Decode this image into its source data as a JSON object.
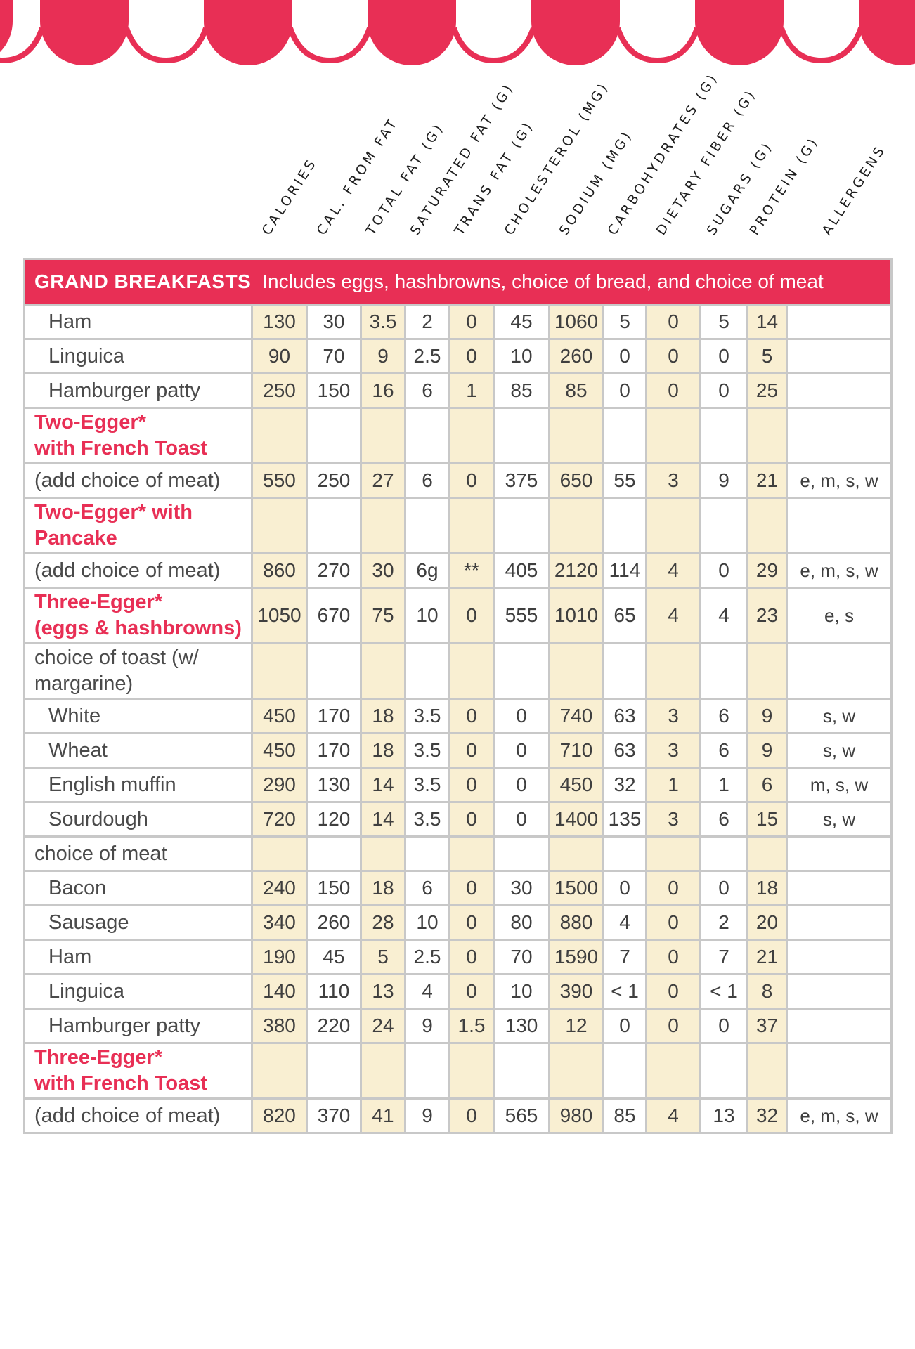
{
  "colors": {
    "red": "#E82F55",
    "cream": "#F9EFD2",
    "grid": "#C8C8C8",
    "text": "#3F3F3F",
    "label": "#4A4A4A",
    "header_text": "#1E1E1E"
  },
  "columns": [
    "CALORIES",
    "CAL. FROM FAT",
    "TOTAL FAT (G)",
    "SATURATED FAT (G)",
    "TRANS FAT (G)",
    "CHOLESTEROL (MG)",
    "SODIUM (MG)",
    "CARBOHYDRATES (G)",
    "DIETARY FIBER (G)",
    "SUGARS (G)",
    "PROTEIN (G)",
    "ALLERGENS"
  ],
  "section_header": {
    "title": "GRAND BREAKFASTS",
    "subtitle": "Includes eggs, hashbrowns, choice of bread, and choice of meat"
  },
  "table": {
    "rows": [
      {
        "label_lines": [
          "Ham"
        ],
        "style": "item",
        "tall": false,
        "values": [
          "130",
          "30",
          "3.5",
          "2",
          "0",
          "45",
          "1060",
          "5",
          "0",
          "5",
          "14",
          ""
        ]
      },
      {
        "label_lines": [
          "Linguica"
        ],
        "style": "item",
        "tall": false,
        "values": [
          "90",
          "70",
          "9",
          "2.5",
          "0",
          "10",
          "260",
          "0",
          "0",
          "0",
          "5",
          ""
        ]
      },
      {
        "label_lines": [
          "Hamburger patty"
        ],
        "style": "item",
        "tall": false,
        "values": [
          "250",
          "150",
          "16",
          "6",
          "1",
          "85",
          "85",
          "0",
          "0",
          "0",
          "25",
          ""
        ]
      },
      {
        "label_lines": [
          "Two-Egger*",
          "with French Toast"
        ],
        "style": "red",
        "tall": true,
        "values": []
      },
      {
        "label_lines": [
          "(add choice of meat)"
        ],
        "style": "flush",
        "tall": false,
        "values": [
          "550",
          "250",
          "27",
          "6",
          "0",
          "375",
          "650",
          "55",
          "3",
          "9",
          "21",
          "e, m, s, w"
        ]
      },
      {
        "label_lines": [
          "Two-Egger* with Pancake"
        ],
        "style": "red",
        "tall": false,
        "values": []
      },
      {
        "label_lines": [
          "(add choice of meat)"
        ],
        "style": "flush",
        "tall": false,
        "values": [
          "860",
          "270",
          "30",
          "6g",
          "**",
          "405",
          "2120",
          "114",
          "4",
          "0",
          "29",
          "e, m, s, w"
        ]
      },
      {
        "label_lines": [
          "Three-Egger*",
          "(eggs & hashbrowns)"
        ],
        "style": "red",
        "tall": true,
        "values": [
          "1050",
          "670",
          "75",
          "10",
          "0",
          "555",
          "1010",
          "65",
          "4",
          "4",
          "23",
          "e, s"
        ]
      },
      {
        "label_lines": [
          "choice of toast (w/",
          "margarine)"
        ],
        "style": "flush",
        "tall": true,
        "values": []
      },
      {
        "label_lines": [
          "White"
        ],
        "style": "item",
        "tall": false,
        "values": [
          "450",
          "170",
          "18",
          "3.5",
          "0",
          "0",
          "740",
          "63",
          "3",
          "6",
          "9",
          "s, w"
        ]
      },
      {
        "label_lines": [
          "Wheat"
        ],
        "style": "item",
        "tall": false,
        "values": [
          "450",
          "170",
          "18",
          "3.5",
          "0",
          "0",
          "710",
          "63",
          "3",
          "6",
          "9",
          "s, w"
        ]
      },
      {
        "label_lines": [
          "English muffin"
        ],
        "style": "item",
        "tall": false,
        "values": [
          "290",
          "130",
          "14",
          "3.5",
          "0",
          "0",
          "450",
          "32",
          "1",
          "1",
          "6",
          "m, s, w"
        ]
      },
      {
        "label_lines": [
          "Sourdough"
        ],
        "style": "item",
        "tall": false,
        "values": [
          "720",
          "120",
          "14",
          "3.5",
          "0",
          "0",
          "1400",
          "135",
          "3",
          "6",
          "15",
          "s, w"
        ]
      },
      {
        "label_lines": [
          "choice of meat"
        ],
        "style": "flush",
        "tall": false,
        "values": []
      },
      {
        "label_lines": [
          "Bacon"
        ],
        "style": "item",
        "tall": false,
        "values": [
          "240",
          "150",
          "18",
          "6",
          "0",
          "30",
          "1500",
          "0",
          "0",
          "0",
          "18",
          ""
        ]
      },
      {
        "label_lines": [
          "Sausage"
        ],
        "style": "item",
        "tall": false,
        "values": [
          "340",
          "260",
          "28",
          "10",
          "0",
          "80",
          "880",
          "4",
          "0",
          "2",
          "20",
          ""
        ]
      },
      {
        "label_lines": [
          "Ham"
        ],
        "style": "item",
        "tall": false,
        "values": [
          "190",
          "45",
          "5",
          "2.5",
          "0",
          "70",
          "1590",
          "7",
          "0",
          "7",
          "21",
          ""
        ]
      },
      {
        "label_lines": [
          "Linguica"
        ],
        "style": "item",
        "tall": false,
        "values": [
          "140",
          "110",
          "13",
          "4",
          "0",
          "10",
          "390",
          "< 1",
          "0",
          "< 1",
          "8",
          ""
        ]
      },
      {
        "label_lines": [
          "Hamburger patty"
        ],
        "style": "item",
        "tall": false,
        "values": [
          "380",
          "220",
          "24",
          "9",
          "1.5",
          "130",
          "12",
          "0",
          "0",
          "0",
          "37",
          ""
        ]
      },
      {
        "label_lines": [
          "Three-Egger*",
          "with French Toast"
        ],
        "style": "red",
        "tall": true,
        "values": []
      },
      {
        "label_lines": [
          "(add choice of meat)"
        ],
        "style": "flush",
        "tall": false,
        "values": [
          "820",
          "370",
          "41",
          "9",
          "0",
          "565",
          "980",
          "85",
          "4",
          "13",
          "32",
          "e, m, s, w"
        ]
      }
    ]
  }
}
